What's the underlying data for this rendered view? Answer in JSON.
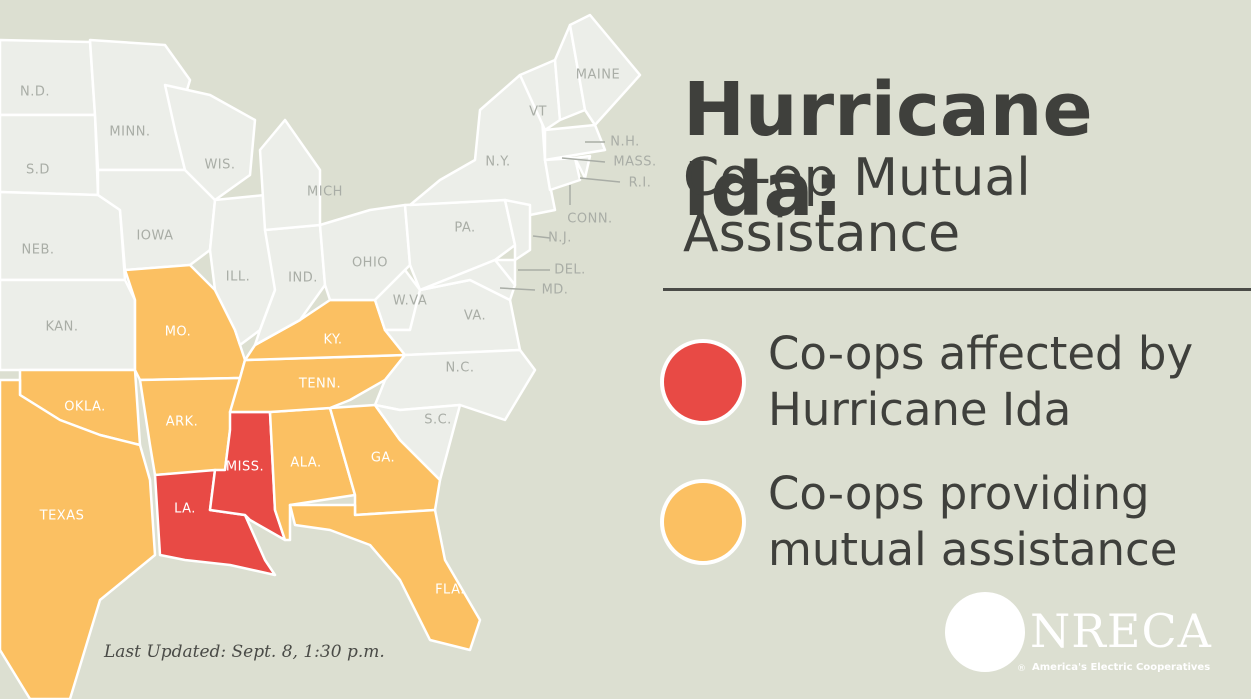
{
  "title": "Hurricane Ida:",
  "subtitle": "Co-op Mutual Assistance",
  "legend": [
    {
      "label": "Co-ops affected by Hurricane Ida",
      "color": "#e84a45"
    },
    {
      "label": "Co-ops providing mutual assistance",
      "color": "#fbc062"
    }
  ],
  "states": [
    {
      "label": "N.D."
    },
    {
      "label": "S.D"
    },
    {
      "label": "NEB."
    },
    {
      "label": "KAN."
    },
    {
      "label": "OKLA.",
      "color": "#fbc062"
    },
    {
      "label": "TEXAS",
      "color": "#fbc062"
    },
    {
      "label": "MINN."
    },
    {
      "label": "IOWA"
    },
    {
      "label": "MO.",
      "color": "#fbc062"
    },
    {
      "label": "ARK.",
      "color": "#fbc062"
    },
    {
      "label": "LA.",
      "color": "#e84a45"
    },
    {
      "label": "MISS.",
      "color": "#e84a45"
    },
    {
      "label": "ALA.",
      "color": "#fbc062"
    },
    {
      "label": "GA.",
      "color": "#fbc062"
    },
    {
      "label": "FLA.",
      "color": "#fbc062"
    },
    {
      "label": "TENN.",
      "color": "#fbc062"
    },
    {
      "label": "KY.",
      "color": "#fbc062"
    },
    {
      "label": "WIS."
    },
    {
      "label": "ILL."
    },
    {
      "label": "IND."
    },
    {
      "label": "OHIO"
    },
    {
      "label": "MICH"
    },
    {
      "label": "W.VA"
    },
    {
      "label": "VA."
    },
    {
      "label": "N.C."
    },
    {
      "label": "S.C."
    },
    {
      "label": "PA."
    },
    {
      "label": "N.Y."
    },
    {
      "label": "VT"
    },
    {
      "label": "N.H."
    },
    {
      "label": "MAINE"
    },
    {
      "label": "MASS."
    },
    {
      "label": "R.I."
    },
    {
      "label": "CONN."
    },
    {
      "label": "N.J."
    },
    {
      "label": "DEL."
    },
    {
      "label": "MD."
    }
  ],
  "note": "Last Updated: Sept. 8, 1:30 p.m.",
  "logo": {
    "name": "NRECA",
    "mark": "®",
    "tagline": "America's Electric Cooperatives"
  }
}
